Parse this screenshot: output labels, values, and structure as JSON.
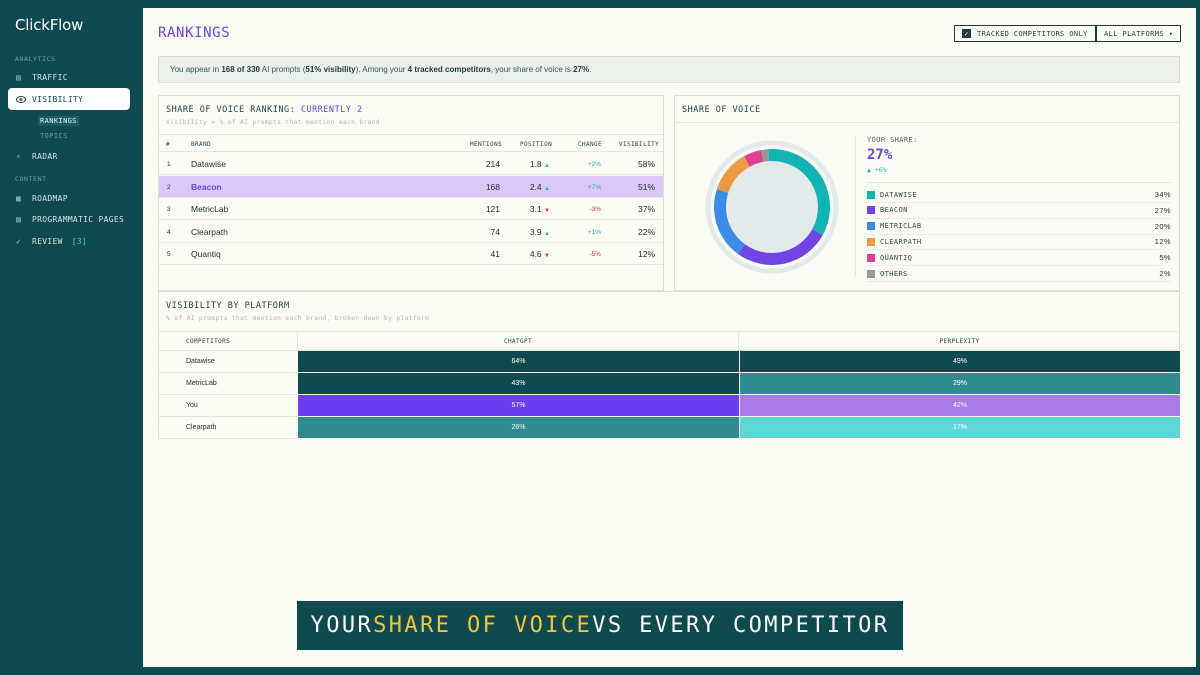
{
  "app": {
    "name": "ClickFlow"
  },
  "sidebar": {
    "sections": [
      {
        "label": "ANALYTICS"
      },
      {
        "label": "CONTENT"
      }
    ],
    "items": [
      {
        "label": "TRAFFIC",
        "icon": "grid-icon"
      },
      {
        "label": "VISIBILITY",
        "icon": "eye-icon",
        "active": true
      },
      {
        "label": "RADAR",
        "icon": "dot-icon"
      },
      {
        "label": "ROADMAP",
        "icon": "grid-icon"
      },
      {
        "label": "PROGRAMMATIC PAGES",
        "icon": "pages-icon"
      },
      {
        "label": "REVIEW",
        "icon": "check-icon",
        "badge": "[3]"
      }
    ],
    "subitems": [
      {
        "label": "RANKINGS",
        "active": true
      },
      {
        "label": "TOPICS"
      }
    ]
  },
  "header": {
    "title": "RANKINGS",
    "filter_label": "TRACKED COMPETITORS ONLY",
    "filter_checked": true,
    "platform_label": "ALL PLATFORMS ▾"
  },
  "banner": {
    "t1": "You appear in ",
    "b1": "168 of 330",
    "t2": " AI prompts (",
    "b2": "51% visibility",
    "t3": "). Among your ",
    "b3": "4 tracked competitors",
    "t4": ", your share of voice is ",
    "b4": "27%",
    "t5": "."
  },
  "ranking": {
    "title": "SHARE OF VOICE RANKING: ",
    "title_highlight": "CURRENTLY 2",
    "subtitle": "Visibility = % of AI prompts that mention each brand",
    "columns": [
      "#",
      "BRAND",
      "MENTIONS",
      "POSITION",
      "CHANGE",
      "VISIBILITY"
    ],
    "rows": [
      {
        "rank": "1",
        "brand": "Datawise",
        "mentions": "214",
        "position": "1.8",
        "trend": "▲",
        "change": "+2%",
        "visibility": "58%"
      },
      {
        "rank": "2",
        "brand": "Beacon",
        "mentions": "168",
        "position": "2.4",
        "trend": "▲",
        "change": "+7%",
        "visibility": "51%"
      },
      {
        "rank": "3",
        "brand": "MetricLab",
        "mentions": "121",
        "position": "3.1",
        "trend": "▼",
        "change": "-3%",
        "visibility": "37%"
      },
      {
        "rank": "4",
        "brand": "Clearpath",
        "mentions": "74",
        "position": "3.9",
        "trend": "▲",
        "change": "+1%",
        "visibility": "22%"
      },
      {
        "rank": "5",
        "brand": "Quantiq",
        "mentions": "41",
        "position": "4.6",
        "trend": "▼",
        "change": "-5%",
        "visibility": "12%"
      }
    ]
  },
  "share": {
    "title": "SHARE OF VOICE",
    "your_share_label": "YOUR SHARE:",
    "your_share_value": "27%",
    "your_share_delta": "▲ +6%",
    "legend": [
      {
        "name": "DATAWISE",
        "pct": "34%",
        "value": 34,
        "color": "#12b3b3"
      },
      {
        "name": "BEACON",
        "pct": "27%",
        "value": 27,
        "color": "#6e45e2"
      },
      {
        "name": "METRICLAB",
        "pct": "20%",
        "value": 20,
        "color": "#3c8ce7"
      },
      {
        "name": "CLEARPATH",
        "pct": "12%",
        "value": 12,
        "color": "#ee9a45"
      },
      {
        "name": "QUANTIQ",
        "pct": "5%",
        "value": 5,
        "color": "#e0408f"
      },
      {
        "name": "OTHERS",
        "pct": "2%",
        "value": 2,
        "color": "#999999"
      }
    ]
  },
  "platform": {
    "title": "VISIBILITY BY PLATFORM",
    "subtitle": "% of AI prompts that mention each brand, broken down by platform",
    "columns": [
      "COMPETITORS",
      "CHATGPT",
      "PERPLEXITY"
    ],
    "rows": [
      {
        "name": "Datawise",
        "chatgpt": "64%",
        "perplexity": "49%",
        "chatgpt_color": "#0f4a4e",
        "perplexity_color": "#0f4a4e"
      },
      {
        "name": "MetricLab",
        "chatgpt": "43%",
        "perplexity": "29%",
        "chatgpt_color": "#0f4a4e",
        "perplexity_color": "#2f8b8f"
      },
      {
        "name": "You",
        "chatgpt": "57%",
        "perplexity": "42%",
        "chatgpt_color": "#6a3df0",
        "perplexity_color": "#a77ae4"
      },
      {
        "name": "Clearpath",
        "chatgpt": "26%",
        "perplexity": "17%",
        "chatgpt_color": "#2f8b8f",
        "perplexity_color": "#5dd6d8"
      }
    ]
  },
  "caption": {
    "pre": "YOUR ",
    "highlight": "SHARE OF VOICE",
    "post": " VS EVERY COMPETITOR"
  }
}
